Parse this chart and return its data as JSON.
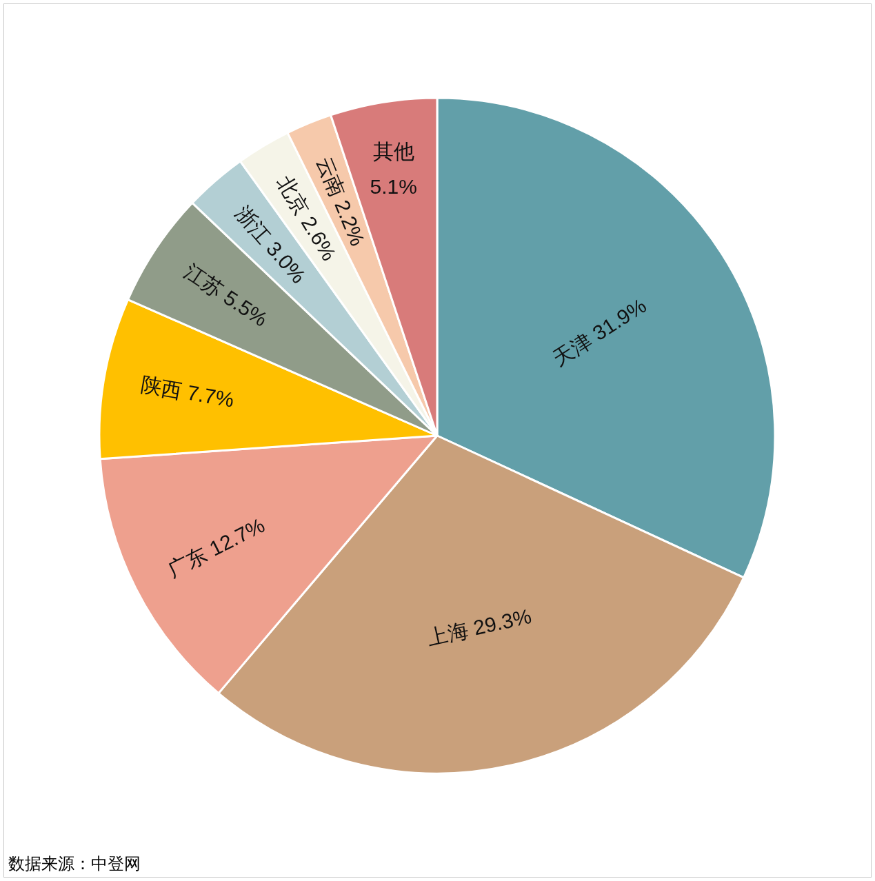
{
  "chart_data": {
    "type": "pie",
    "categories": [
      "天津",
      "上海",
      "广东",
      "陕西",
      "江苏",
      "浙江",
      "北京",
      "云南",
      "其他"
    ],
    "values": [
      31.9,
      29.3,
      12.7,
      7.7,
      5.5,
      3.0,
      2.6,
      2.2,
      5.1
    ],
    "value_labels": [
      "31.9%",
      "29.3%",
      "12.7%",
      "7.7%",
      "5.5%",
      "3.0%",
      "2.6%",
      "2.2%",
      "5.1%"
    ],
    "colors": [
      "#629fa9",
      "#c9a07b",
      "#eea08e",
      "#ffc000",
      "#909c89",
      "#b3cfd4",
      "#f5f4e8",
      "#f6c9ab",
      "#d87b7a"
    ],
    "annotations": [
      "数据来源：中登网"
    ]
  }
}
